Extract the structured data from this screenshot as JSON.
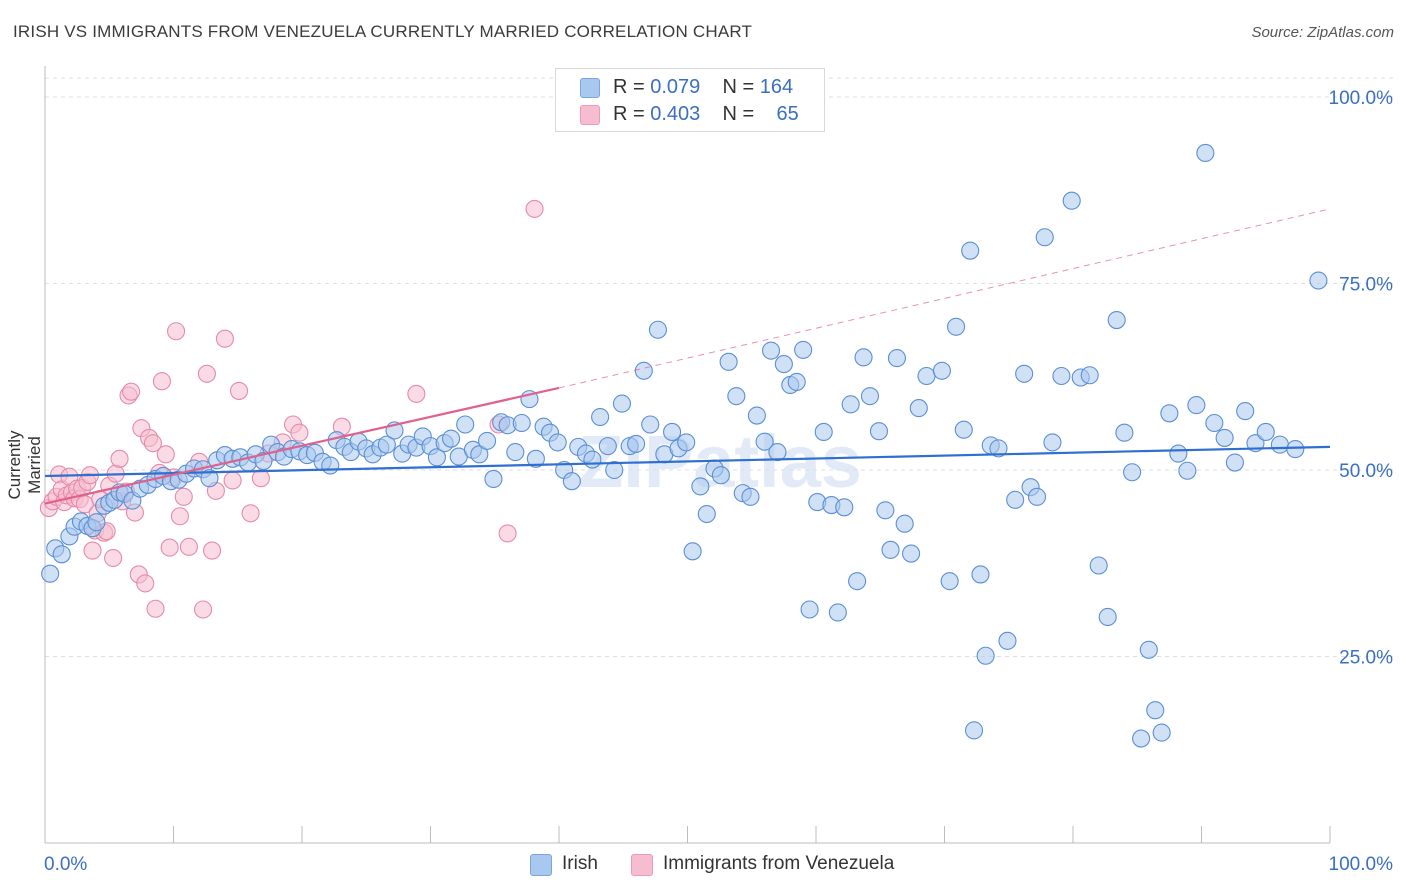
{
  "title": "IRISH VS IMMIGRANTS FROM VENEZUELA CURRENTLY MARRIED CORRELATION CHART",
  "source": "Source: ZipAtlas.com",
  "watermark": "ZIPatlas",
  "legend_top": {
    "rows": [
      {
        "r_label": "R = ",
        "r_value": "0.079",
        "n_label": "N = ",
        "n_value": "164",
        "color": "#a9c8ef"
      },
      {
        "r_label": "R = ",
        "r_value": "0.403",
        "n_label": "N = ",
        "n_value": "65",
        "color": "#f6bdd0"
      }
    ]
  },
  "colors": {
    "irish_fill": "#a9c8ef",
    "irish_stroke": "#5b8fd4",
    "irish_line": "#2f6fd0",
    "venezuela_fill": "#f6bdd0",
    "venezuela_stroke": "#e68aa8",
    "venezuela_line": "#e0628c",
    "grid": "#dedede",
    "tick_text": "#3a6fc4"
  },
  "chart_data": {
    "type": "scatter",
    "title": "IRISH VS IMMIGRANTS FROM VENEZUELA CURRENTLY MARRIED CORRELATION CHART",
    "xlabel": "",
    "ylabel": "Currently Married",
    "xlim": [
      0,
      100
    ],
    "ylim": [
      0,
      105
    ],
    "x_tick_labels": [
      "0.0%",
      "100.0%"
    ],
    "y_ticks": [
      25,
      50,
      75,
      100
    ],
    "y_tick_labels": [
      "25.0%",
      "50.0%",
      "75.0%",
      "100.0%"
    ],
    "grid": true,
    "legend_position": "bottom",
    "series": [
      {
        "name": "Irish",
        "R": 0.079,
        "N": 164,
        "trend": {
          "x0": 0,
          "y0": 49.2,
          "x1": 100,
          "y1": 53.1
        },
        "points": [
          [
            0.4,
            36.1
          ],
          [
            0.8,
            39.5
          ],
          [
            1.3,
            38.7
          ],
          [
            1.9,
            41.1
          ],
          [
            2.3,
            42.4
          ],
          [
            2.8,
            43.1
          ],
          [
            3.3,
            42.5
          ],
          [
            3.7,
            42.2
          ],
          [
            4.0,
            43.0
          ],
          [
            4.6,
            45.2
          ],
          [
            5.0,
            45.6
          ],
          [
            5.4,
            46.0
          ],
          [
            5.8,
            47.0
          ],
          [
            6.2,
            46.8
          ],
          [
            6.8,
            45.9
          ],
          [
            7.4,
            47.5
          ],
          [
            8.0,
            48.0
          ],
          [
            8.6,
            48.8
          ],
          [
            9.2,
            49.2
          ],
          [
            9.8,
            48.5
          ],
          [
            10.4,
            48.7
          ],
          [
            11.0,
            49.5
          ],
          [
            11.6,
            50.2
          ],
          [
            12.3,
            50.1
          ],
          [
            12.8,
            48.9
          ],
          [
            13.4,
            51.3
          ],
          [
            14.0,
            52.0
          ],
          [
            14.6,
            51.5
          ],
          [
            15.2,
            51.7
          ],
          [
            15.8,
            51.0
          ],
          [
            16.4,
            52.1
          ],
          [
            17.0,
            51.2
          ],
          [
            17.6,
            53.4
          ],
          [
            18.1,
            52.4
          ],
          [
            18.6,
            51.8
          ],
          [
            19.2,
            52.8
          ],
          [
            19.8,
            52.5
          ],
          [
            20.4,
            52.0
          ],
          [
            21.0,
            52.3
          ],
          [
            21.6,
            51.1
          ],
          [
            22.2,
            50.6
          ],
          [
            22.7,
            54.0
          ],
          [
            23.3,
            53.1
          ],
          [
            23.8,
            52.4
          ],
          [
            24.4,
            53.8
          ],
          [
            25.0,
            52.9
          ],
          [
            25.5,
            52.1
          ],
          [
            26.1,
            53.0
          ],
          [
            26.6,
            53.4
          ],
          [
            27.2,
            55.3
          ],
          [
            27.8,
            52.2
          ],
          [
            28.3,
            53.4
          ],
          [
            28.9,
            53.0
          ],
          [
            29.4,
            54.5
          ],
          [
            30.0,
            53.2
          ],
          [
            30.5,
            51.7
          ],
          [
            31.1,
            53.6
          ],
          [
            31.6,
            54.2
          ],
          [
            32.2,
            51.8
          ],
          [
            32.7,
            56.1
          ],
          [
            33.3,
            52.7
          ],
          [
            33.8,
            52.1
          ],
          [
            34.4,
            53.9
          ],
          [
            34.9,
            48.8
          ],
          [
            35.5,
            56.4
          ],
          [
            36.0,
            56.0
          ],
          [
            36.6,
            52.4
          ],
          [
            37.1,
            56.3
          ],
          [
            37.7,
            59.5
          ],
          [
            38.2,
            51.5
          ],
          [
            38.8,
            55.8
          ],
          [
            39.3,
            55.0
          ],
          [
            39.9,
            53.7
          ],
          [
            40.4,
            50.0
          ],
          [
            41.0,
            48.5
          ],
          [
            41.5,
            53.1
          ],
          [
            42.1,
            52.2
          ],
          [
            42.6,
            51.4
          ],
          [
            43.2,
            57.1
          ],
          [
            43.8,
            53.2
          ],
          [
            44.3,
            50.0
          ],
          [
            44.9,
            58.9
          ],
          [
            45.5,
            53.2
          ],
          [
            46.0,
            53.5
          ],
          [
            46.6,
            63.3
          ],
          [
            47.1,
            56.1
          ],
          [
            47.7,
            68.8
          ],
          [
            48.2,
            52.1
          ],
          [
            48.8,
            55.1
          ],
          [
            49.3,
            52.9
          ],
          [
            49.9,
            53.7
          ],
          [
            50.4,
            39.1
          ],
          [
            51.0,
            47.8
          ],
          [
            51.5,
            44.1
          ],
          [
            52.1,
            50.2
          ],
          [
            52.6,
            49.3
          ],
          [
            53.2,
            64.5
          ],
          [
            53.8,
            59.9
          ],
          [
            54.3,
            46.9
          ],
          [
            54.9,
            46.4
          ],
          [
            55.4,
            57.3
          ],
          [
            56.0,
            53.8
          ],
          [
            56.5,
            66.0
          ],
          [
            57.0,
            52.4
          ],
          [
            57.5,
            64.2
          ],
          [
            58.0,
            61.4
          ],
          [
            58.5,
            61.8
          ],
          [
            59.0,
            66.1
          ],
          [
            59.5,
            31.3
          ],
          [
            60.1,
            45.7
          ],
          [
            60.6,
            55.1
          ],
          [
            61.2,
            45.3
          ],
          [
            61.7,
            30.9
          ],
          [
            62.2,
            45.0
          ],
          [
            62.7,
            58.8
          ],
          [
            63.2,
            35.1
          ],
          [
            63.7,
            65.1
          ],
          [
            64.2,
            59.9
          ],
          [
            64.9,
            55.2
          ],
          [
            65.4,
            44.6
          ],
          [
            65.8,
            39.3
          ],
          [
            66.3,
            65.0
          ],
          [
            66.9,
            42.8
          ],
          [
            67.4,
            38.8
          ],
          [
            68.0,
            58.3
          ],
          [
            68.6,
            62.6
          ],
          [
            69.8,
            63.3
          ],
          [
            70.4,
            35.1
          ],
          [
            70.9,
            69.2
          ],
          [
            71.5,
            55.4
          ],
          [
            72.0,
            79.4
          ],
          [
            72.3,
            15.1
          ],
          [
            72.8,
            36.0
          ],
          [
            73.2,
            25.1
          ],
          [
            73.6,
            53.3
          ],
          [
            74.2,
            52.9
          ],
          [
            74.9,
            27.1
          ],
          [
            75.5,
            46.0
          ],
          [
            76.2,
            62.9
          ],
          [
            76.7,
            47.7
          ],
          [
            77.2,
            46.4
          ],
          [
            77.8,
            81.2
          ],
          [
            78.4,
            53.7
          ],
          [
            79.1,
            62.6
          ],
          [
            79.9,
            86.1
          ],
          [
            80.6,
            62.4
          ],
          [
            81.3,
            62.7
          ],
          [
            82.0,
            37.2
          ],
          [
            82.7,
            30.3
          ],
          [
            83.4,
            70.1
          ],
          [
            84.0,
            55.0
          ],
          [
            84.6,
            49.7
          ],
          [
            85.3,
            14.0
          ],
          [
            85.9,
            25.9
          ],
          [
            86.4,
            17.8
          ],
          [
            86.9,
            14.8
          ],
          [
            87.5,
            57.6
          ],
          [
            88.2,
            52.2
          ],
          [
            88.9,
            49.9
          ],
          [
            89.6,
            58.7
          ],
          [
            90.3,
            92.5
          ],
          [
            91.0,
            56.3
          ],
          [
            91.8,
            54.3
          ],
          [
            92.6,
            51.0
          ],
          [
            93.4,
            57.9
          ],
          [
            94.2,
            53.6
          ],
          [
            95.0,
            55.1
          ],
          [
            96.1,
            53.4
          ],
          [
            97.3,
            52.8
          ],
          [
            99.1,
            75.4
          ]
        ]
      },
      {
        "name": "Immigrants from Venezuela",
        "R": 0.403,
        "N": 65,
        "trend": {
          "x0": 0,
          "y0": 45.5,
          "x1": 40,
          "y1": 61.0
        },
        "trend_dashed": {
          "x0": 40,
          "y0": 61.0,
          "x1": 100,
          "y1": 85.0
        },
        "points": [
          [
            0.3,
            44.9
          ],
          [
            0.6,
            45.8
          ],
          [
            0.9,
            46.4
          ],
          [
            1.1,
            49.4
          ],
          [
            1.3,
            47.4
          ],
          [
            1.5,
            45.7
          ],
          [
            1.7,
            46.6
          ],
          [
            1.9,
            49.1
          ],
          [
            2.1,
            47.0
          ],
          [
            2.3,
            46.2
          ],
          [
            2.5,
            47.5
          ],
          [
            2.7,
            46.1
          ],
          [
            2.9,
            47.6
          ],
          [
            3.1,
            45.4
          ],
          [
            3.3,
            48.4
          ],
          [
            3.5,
            49.3
          ],
          [
            3.7,
            39.2
          ],
          [
            3.9,
            41.9
          ],
          [
            4.1,
            44.2
          ],
          [
            4.3,
            46.1
          ],
          [
            4.6,
            41.6
          ],
          [
            4.8,
            41.8
          ],
          [
            5.0,
            47.9
          ],
          [
            5.3,
            38.2
          ],
          [
            5.5,
            49.5
          ],
          [
            5.8,
            51.5
          ],
          [
            6.0,
            45.8
          ],
          [
            6.3,
            47.1
          ],
          [
            6.5,
            60.0
          ],
          [
            6.7,
            60.5
          ],
          [
            7.0,
            44.3
          ],
          [
            7.3,
            36.0
          ],
          [
            7.5,
            55.6
          ],
          [
            7.8,
            34.8
          ],
          [
            8.1,
            54.3
          ],
          [
            8.4,
            53.6
          ],
          [
            8.6,
            31.4
          ],
          [
            8.9,
            49.6
          ],
          [
            9.1,
            61.9
          ],
          [
            9.4,
            52.1
          ],
          [
            9.7,
            39.6
          ],
          [
            10.0,
            49.0
          ],
          [
            10.2,
            68.6
          ],
          [
            10.5,
            43.8
          ],
          [
            10.8,
            46.4
          ],
          [
            11.2,
            39.7
          ],
          [
            12.0,
            51.1
          ],
          [
            12.3,
            31.3
          ],
          [
            12.6,
            62.9
          ],
          [
            13.0,
            39.2
          ],
          [
            13.3,
            47.2
          ],
          [
            14.0,
            67.6
          ],
          [
            14.6,
            48.6
          ],
          [
            15.1,
            60.6
          ],
          [
            16.0,
            44.2
          ],
          [
            16.8,
            48.9
          ],
          [
            17.4,
            52.2
          ],
          [
            18.5,
            53.7
          ],
          [
            19.3,
            56.1
          ],
          [
            19.8,
            55.0
          ],
          [
            23.1,
            55.8
          ],
          [
            28.9,
            60.2
          ],
          [
            35.3,
            56.1
          ],
          [
            36.0,
            41.5
          ],
          [
            38.1,
            85.0
          ]
        ]
      }
    ]
  }
}
